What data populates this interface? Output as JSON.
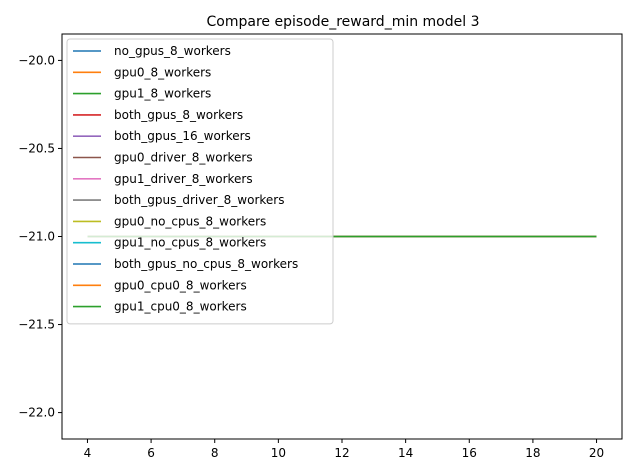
{
  "chart_data": {
    "type": "line",
    "title": "Compare episode_reward_min model 3",
    "xlabel": "",
    "ylabel": "",
    "xlim": [
      3.2,
      20.8
    ],
    "ylim": [
      -22.15,
      -19.85
    ],
    "xticks": [
      4,
      6,
      8,
      10,
      12,
      14,
      16,
      18,
      20
    ],
    "yticks": [
      -22.0,
      -21.5,
      -21.0,
      -20.5,
      -20.0
    ],
    "xtick_labels": [
      "4",
      "6",
      "8",
      "10",
      "12",
      "14",
      "16",
      "18",
      "20"
    ],
    "ytick_labels": [
      "−22.0",
      "−21.5",
      "−21.0",
      "−20.5",
      "−20.0"
    ],
    "grid": false,
    "legend_position": "upper-left",
    "series": [
      {
        "name": "no_gpus_8_workers",
        "color": "#1f77b4",
        "x": [
          4,
          20
        ],
        "y": [
          -21,
          -21
        ]
      },
      {
        "name": "gpu0_8_workers",
        "color": "#ff7f0e",
        "x": [
          4,
          20
        ],
        "y": [
          -21,
          -21
        ]
      },
      {
        "name": "gpu1_8_workers",
        "color": "#2ca02c",
        "x": [
          4,
          20
        ],
        "y": [
          -21,
          -21
        ]
      },
      {
        "name": "both_gpus_8_workers",
        "color": "#d62728",
        "x": [
          4,
          20
        ],
        "y": [
          -21,
          -21
        ]
      },
      {
        "name": "both_gpus_16_workers",
        "color": "#9467bd",
        "x": [
          4,
          20
        ],
        "y": [
          -21,
          -21
        ]
      },
      {
        "name": "gpu0_driver_8_workers",
        "color": "#8c564b",
        "x": [
          4,
          20
        ],
        "y": [
          -21,
          -21
        ]
      },
      {
        "name": "gpu1_driver_8_workers",
        "color": "#e377c2",
        "x": [
          4,
          20
        ],
        "y": [
          -21,
          -21
        ]
      },
      {
        "name": "both_gpus_driver_8_workers",
        "color": "#7f7f7f",
        "x": [
          4,
          20
        ],
        "y": [
          -21,
          -21
        ]
      },
      {
        "name": "gpu0_no_cpus_8_workers",
        "color": "#bcbd22",
        "x": [
          4,
          20
        ],
        "y": [
          -21,
          -21
        ]
      },
      {
        "name": "gpu1_no_cpus_8_workers",
        "color": "#17becf",
        "x": [
          4,
          20
        ],
        "y": [
          -21,
          -21
        ]
      },
      {
        "name": "both_gpus_no_cpus_8_workers",
        "color": "#1f77b4",
        "x": [
          4,
          20
        ],
        "y": [
          -21,
          -21
        ]
      },
      {
        "name": "gpu0_cpu0_8_workers",
        "color": "#ff7f0e",
        "x": [
          4,
          20
        ],
        "y": [
          -21,
          -21
        ]
      },
      {
        "name": "gpu1_cpu0_8_workers",
        "color": "#2ca02c",
        "x": [
          4,
          20
        ],
        "y": [
          -21,
          -21
        ]
      }
    ]
  }
}
